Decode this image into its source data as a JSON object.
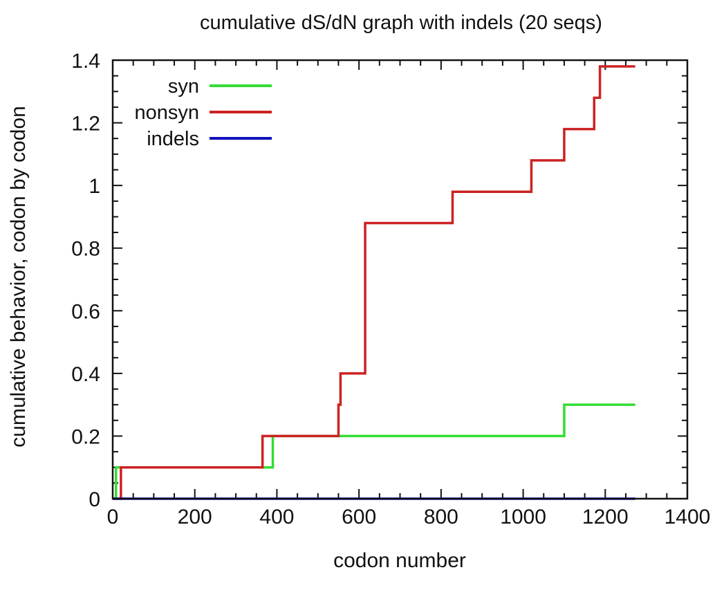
{
  "chart_data": {
    "type": "line",
    "step": true,
    "title": "cumulative dS/dN graph with indels (20 seqs)",
    "xlabel": "codon number",
    "ylabel": "cumulative behavior, codon by codon",
    "xlim": [
      0,
      1400
    ],
    "ylim": [
      0,
      1.4
    ],
    "xticks": [
      0,
      200,
      400,
      600,
      800,
      1000,
      1200,
      1400
    ],
    "yticks": [
      0,
      0.2,
      0.4,
      0.6,
      0.8,
      1,
      1.2,
      1.4
    ],
    "xtick_labels": [
      "0",
      "200",
      "400",
      "600",
      "800",
      "1000",
      "1200",
      "1400"
    ],
    "ytick_labels": [
      "0",
      "0.2",
      "0.4",
      "0.6",
      "0.8",
      "1",
      "1.2",
      "1.4"
    ],
    "grid": false,
    "legend_position": "top-left",
    "series": [
      {
        "name": "syn",
        "color": "#33dd33",
        "x": [
          0,
          8,
          390,
          550,
          1100,
          1273
        ],
        "y": [
          0,
          0.1,
          0.2,
          0.2,
          0.3,
          0.3
        ]
      },
      {
        "name": "nonsyn",
        "color": "#cc2222",
        "x": [
          0,
          20,
          365,
          550,
          555,
          615,
          828,
          1020,
          1100,
          1173,
          1187,
          1273
        ],
        "y": [
          0,
          0.1,
          0.2,
          0.3,
          0.4,
          0.88,
          0.98,
          1.08,
          1.18,
          1.28,
          1.38,
          1.38
        ]
      },
      {
        "name": "indels",
        "color": "#1111bb",
        "x": [
          0,
          1273
        ],
        "y": [
          0,
          0
        ]
      }
    ]
  }
}
